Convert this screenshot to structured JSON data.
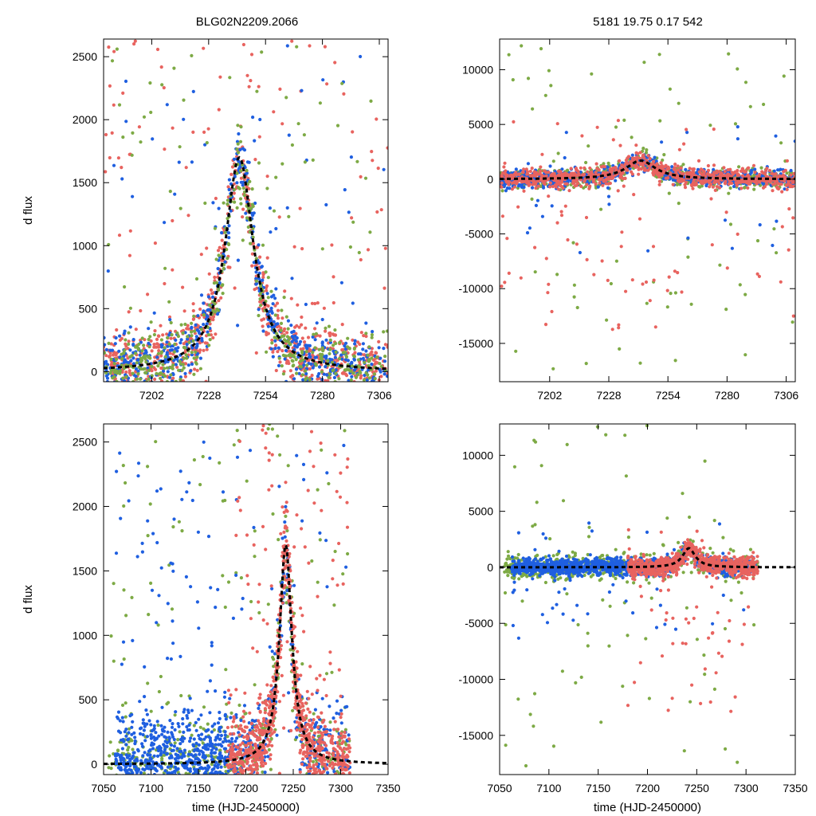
{
  "figure": {
    "title_left": "BLG02N2209.2066",
    "title_right": "5181  19.75  0.17  542"
  },
  "colors": {
    "red": "#e8635f",
    "blue": "#1f5fe0",
    "green": "#7daa45",
    "model": "#000000",
    "frame": "#000000"
  },
  "chart_data": [
    {
      "id": "top-left",
      "type": "scatter",
      "xlabel": "",
      "ylabel": "d flux",
      "xlim": [
        7180,
        7310
      ],
      "ylim": [
        -80,
        2640
      ],
      "xticks": [
        7202,
        7228,
        7254,
        7280,
        7306
      ],
      "yticks": [
        0,
        500,
        1000,
        1500,
        2000,
        2500
      ],
      "model": {
        "t0": 7242,
        "tE": 9,
        "amp": 1700
      },
      "series": [
        {
          "name": "red",
          "seed": 11,
          "count": 900,
          "segments": [
            [
              7180,
              7310,
              1
            ]
          ],
          "noise": 140,
          "outlier_frac": 0.12,
          "outlier_range": [
            -80,
            2640
          ]
        },
        {
          "name": "blue",
          "seed": 23,
          "count": 600,
          "segments": [
            [
              7180,
              7310,
              1
            ]
          ],
          "noise": 120,
          "outlier_frac": 0.08,
          "outlier_range": [
            -80,
            2640
          ]
        },
        {
          "name": "green",
          "seed": 37,
          "count": 500,
          "segments": [
            [
              7180,
              7310,
              1
            ]
          ],
          "noise": 150,
          "outlier_frac": 0.12,
          "outlier_range": [
            -80,
            2640
          ]
        }
      ]
    },
    {
      "id": "top-right",
      "type": "scatter",
      "xlabel": "",
      "ylabel": "",
      "xlim": [
        7180,
        7310
      ],
      "ylim": [
        -18500,
        12800
      ],
      "xticks": [
        7202,
        7228,
        7254,
        7280,
        7306
      ],
      "yticks": [
        10000,
        5000,
        0,
        -5000,
        -10000,
        -15000
      ],
      "model": {
        "t0": 7242,
        "tE": 9,
        "amp": 1700
      },
      "series": [
        {
          "name": "green",
          "seed": 41,
          "count": 700,
          "segments": [
            [
              7180,
              7310,
              1
            ]
          ],
          "noise": 450,
          "outlier_frac": 0.1,
          "outlier_range": [
            -18000,
            12800
          ]
        },
        {
          "name": "blue",
          "seed": 53,
          "count": 700,
          "segments": [
            [
              7180,
              7310,
              1
            ]
          ],
          "noise": 380,
          "outlier_frac": 0.05,
          "outlier_range": [
            -7000,
            5000
          ]
        },
        {
          "name": "red",
          "seed": 67,
          "count": 900,
          "segments": [
            [
              7180,
              7310,
              1
            ]
          ],
          "noise": 420,
          "outlier_frac": 0.08,
          "outlier_range": [
            -14000,
            5500
          ]
        }
      ]
    },
    {
      "id": "bottom-left",
      "type": "scatter",
      "xlabel": "time (HJD-2450000)",
      "ylabel": "d flux",
      "xlim": [
        7050,
        7350
      ],
      "ylim": [
        -80,
        2640
      ],
      "xticks": [
        7050,
        7100,
        7150,
        7200,
        7250,
        7300,
        7350
      ],
      "yticks": [
        0,
        500,
        1000,
        1500,
        2000,
        2500
      ],
      "model": {
        "t0": 7242,
        "tE": 9,
        "amp": 1700
      },
      "series": [
        {
          "name": "green",
          "seed": 71,
          "count": 550,
          "segments": [
            [
              7055,
              7312,
              1
            ]
          ],
          "noise": 200,
          "outlier_frac": 0.15,
          "outlier_range": [
            -80,
            2640
          ]
        },
        {
          "name": "blue",
          "seed": 83,
          "count": 1100,
          "segments": [
            [
              7062,
              7180,
              2
            ],
            [
              7180,
              7310,
              1
            ]
          ],
          "noise": 190,
          "outlier_frac": 0.1,
          "outlier_range": [
            -80,
            2500
          ]
        },
        {
          "name": "red",
          "seed": 97,
          "count": 900,
          "segments": [
            [
              7180,
              7310,
              1
            ]
          ],
          "noise": 160,
          "outlier_frac": 0.1,
          "outlier_range": [
            -80,
            2640
          ]
        }
      ]
    },
    {
      "id": "bottom-right",
      "type": "scatter",
      "xlabel": "time (HJD-2450000)",
      "ylabel": "",
      "xlim": [
        7050,
        7350
      ],
      "ylim": [
        -18500,
        12800
      ],
      "xticks": [
        7050,
        7100,
        7150,
        7200,
        7250,
        7300,
        7350
      ],
      "yticks": [
        10000,
        5000,
        0,
        -5000,
        -10000,
        -15000
      ],
      "model": {
        "t0": 7242,
        "tE": 9,
        "amp": 1700
      },
      "series": [
        {
          "name": "green",
          "seed": 101,
          "count": 650,
          "segments": [
            [
              7055,
              7312,
              1
            ]
          ],
          "noise": 550,
          "outlier_frac": 0.1,
          "outlier_range": [
            -18000,
            12800
          ]
        },
        {
          "name": "blue",
          "seed": 113,
          "count": 1100,
          "segments": [
            [
              7062,
              7180,
              2
            ],
            [
              7180,
              7310,
              1
            ]
          ],
          "noise": 380,
          "outlier_frac": 0.04,
          "outlier_range": [
            -6500,
            4000
          ]
        },
        {
          "name": "red",
          "seed": 127,
          "count": 800,
          "segments": [
            [
              7180,
              7312,
              1
            ]
          ],
          "noise": 420,
          "outlier_frac": 0.07,
          "outlier_range": [
            -14000,
            4000
          ]
        }
      ]
    }
  ]
}
